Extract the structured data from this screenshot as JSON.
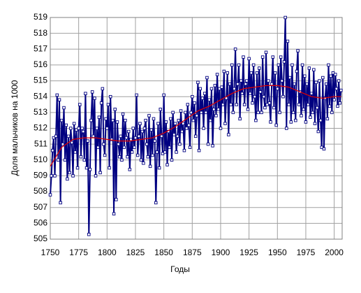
{
  "chart_data": {
    "type": "line",
    "y_label": "Доля мальчиков на 1000",
    "x_label": "Годы",
    "xlim": [
      1750,
      2007
    ],
    "xticks": [
      1750,
      1775,
      1800,
      1825,
      1850,
      1875,
      1900,
      1925,
      1950,
      1975,
      2000
    ],
    "ylim": [
      505,
      519
    ],
    "yticks": [
      505,
      506,
      507,
      508,
      509,
      510,
      511,
      512,
      513,
      514,
      515,
      516,
      517,
      518,
      519
    ],
    "grid": true,
    "x": [
      1750,
      1751,
      1752,
      1753,
      1754,
      1755,
      1756,
      1757,
      1758,
      1759,
      1760,
      1761,
      1762,
      1763,
      1764,
      1765,
      1766,
      1767,
      1768,
      1769,
      1770,
      1771,
      1772,
      1773,
      1774,
      1775,
      1776,
      1777,
      1778,
      1779,
      1780,
      1781,
      1782,
      1783,
      1784,
      1785,
      1786,
      1787,
      1788,
      1789,
      1790,
      1791,
      1792,
      1793,
      1794,
      1795,
      1796,
      1797,
      1798,
      1799,
      1800,
      1801,
      1802,
      1803,
      1804,
      1805,
      1806,
      1807,
      1808,
      1809,
      1810,
      1811,
      1812,
      1813,
      1814,
      1815,
      1816,
      1817,
      1818,
      1819,
      1820,
      1821,
      1822,
      1823,
      1824,
      1825,
      1826,
      1827,
      1828,
      1829,
      1830,
      1831,
      1832,
      1833,
      1834,
      1835,
      1836,
      1837,
      1838,
      1839,
      1840,
      1841,
      1842,
      1843,
      1844,
      1845,
      1846,
      1847,
      1848,
      1849,
      1850,
      1851,
      1852,
      1853,
      1854,
      1855,
      1856,
      1857,
      1858,
      1859,
      1860,
      1861,
      1862,
      1863,
      1864,
      1865,
      1866,
      1867,
      1868,
      1869,
      1870,
      1871,
      1872,
      1873,
      1874,
      1875,
      1876,
      1877,
      1878,
      1879,
      1880,
      1881,
      1882,
      1883,
      1884,
      1885,
      1886,
      1887,
      1888,
      1889,
      1890,
      1891,
      1892,
      1893,
      1894,
      1895,
      1896,
      1897,
      1898,
      1899,
      1900,
      1901,
      1902,
      1903,
      1904,
      1905,
      1906,
      1907,
      1908,
      1909,
      1910,
      1911,
      1912,
      1913,
      1914,
      1915,
      1916,
      1917,
      1918,
      1919,
      1920,
      1921,
      1922,
      1923,
      1924,
      1925,
      1926,
      1927,
      1928,
      1929,
      1930,
      1931,
      1932,
      1933,
      1934,
      1935,
      1936,
      1937,
      1938,
      1939,
      1940,
      1941,
      1942,
      1943,
      1944,
      1945,
      1946,
      1947,
      1948,
      1949,
      1950,
      1951,
      1952,
      1953,
      1954,
      1955,
      1956,
      1957,
      1958,
      1959,
      1960,
      1961,
      1962,
      1963,
      1964,
      1965,
      1966,
      1967,
      1968,
      1969,
      1970,
      1971,
      1972,
      1973,
      1974,
      1975,
      1976,
      1977,
      1978,
      1979,
      1980,
      1981,
      1982,
      1983,
      1984,
      1985,
      1986,
      1987,
      1988,
      1989,
      1990,
      1991,
      1992,
      1993,
      1994,
      1995,
      1996,
      1997,
      1998,
      1999,
      2000,
      2001,
      2002,
      2003,
      2004,
      2005,
      2006
    ],
    "series": [
      {
        "color": "#000080",
        "marker": true,
        "values": [
          507.8,
          509.0,
          510.6,
          511.4,
          509.0,
          511.5,
          514.1,
          510.0,
          513.8,
          507.3,
          512.5,
          511.0,
          513.3,
          510.0,
          512.2,
          508.8,
          511.5,
          509.2,
          512.0,
          511.1,
          509.0,
          512.3,
          510.5,
          511.9,
          509.5,
          512.0,
          513.5,
          510.2,
          512.0,
          511.8,
          510.0,
          514.2,
          509.5,
          511.2,
          505.3,
          509.4,
          512.5,
          514.3,
          511.5,
          513.9,
          509.0,
          512.0,
          510.8,
          512.7,
          509.2,
          513.6,
          514.5,
          511.0,
          510.3,
          512.6,
          512.0,
          513.5,
          509.5,
          514.0,
          511.3,
          512.5,
          506.6,
          513.2,
          507.5,
          512.4,
          511.0,
          510.2,
          511.5,
          510.0,
          512.9,
          510.8,
          512.5,
          511.4,
          510.2,
          511.8,
          509.4,
          511.3,
          510.5,
          512.0,
          510.8,
          511.4,
          514.1,
          510.3,
          511.5,
          512.3,
          510.0,
          511.8,
          509.8,
          512.0,
          512.5,
          511.0,
          510.2,
          512.8,
          509.6,
          511.9,
          510.3,
          512.6,
          511.2,
          507.3,
          510.5,
          512.3,
          509.5,
          513.2,
          511.5,
          510.4,
          514.1,
          510.5,
          512.4,
          509.7,
          511.8,
          510.8,
          512.6,
          510.0,
          513.0,
          511.6,
          512.3,
          510.5,
          511.5,
          512.5,
          511.0,
          513.1,
          511.8,
          512.3,
          510.6,
          513.0,
          512.0,
          513.5,
          512.2,
          510.8,
          513.0,
          514.0,
          512.5,
          513.6,
          511.5,
          512.8,
          514.9,
          510.6,
          514.5,
          513.0,
          513.9,
          512.0,
          514.2,
          513.0,
          515.2,
          511.0,
          513.8,
          512.5,
          514.5,
          510.9,
          513.2,
          514.7,
          512.8,
          515.4,
          513.2,
          514.5,
          512.0,
          514.6,
          513.5,
          515.6,
          512.3,
          513.9,
          515.5,
          511.6,
          514.8,
          513.5,
          516.0,
          513.0,
          514.5,
          517.0,
          513.5,
          514.8,
          516.0,
          512.6,
          515.0,
          514.2,
          516.5,
          513.5,
          514.8,
          515.0,
          513.2,
          516.4,
          514.2,
          515.5,
          513.6,
          516.0,
          514.0,
          512.5,
          515.5,
          513.0,
          515.8,
          514.3,
          513.0,
          516.5,
          514.0,
          513.3,
          516.8,
          513.5,
          515.0,
          513.6,
          512.4,
          514.8,
          516.5,
          513.3,
          515.5,
          512.2,
          514.5,
          516.0,
          513.0,
          516.5,
          515.0,
          514.0,
          516.2,
          519.0,
          512.0,
          517.5,
          513.5,
          515.2,
          512.4,
          516.0,
          513.0,
          514.8,
          512.5,
          515.6,
          516.9,
          513.5,
          514.3,
          512.8,
          516.0,
          513.2,
          515.3,
          512.4,
          514.8,
          513.5,
          515.8,
          512.7,
          514.2,
          513.0,
          515.7,
          512.3,
          514.9,
          513.3,
          511.8,
          515.0,
          512.5,
          510.8,
          515.2,
          510.7,
          513.9,
          514.8,
          512.6,
          516.0,
          513.4,
          515.3,
          513.0,
          515.5,
          513.8,
          515.4,
          514.5,
          513.4,
          515.0,
          513.6,
          514.4
        ]
      },
      {
        "color": "#e00000",
        "marker": false,
        "x": [
          1750,
          1760,
          1770,
          1780,
          1790,
          1800,
          1810,
          1820,
          1830,
          1840,
          1850,
          1860,
          1870,
          1880,
          1890,
          1900,
          1910,
          1920,
          1930,
          1940,
          1950,
          1960,
          1970,
          1980,
          1990,
          2000,
          2006
        ],
        "values": [
          509.6,
          510.8,
          511.3,
          511.4,
          511.4,
          511.3,
          511.2,
          511.2,
          511.3,
          511.4,
          511.7,
          512.1,
          512.6,
          513.1,
          513.4,
          513.8,
          514.2,
          514.5,
          514.6,
          514.7,
          514.7,
          514.6,
          514.3,
          514.0,
          513.9,
          514.0,
          514.0
        ]
      }
    ]
  }
}
